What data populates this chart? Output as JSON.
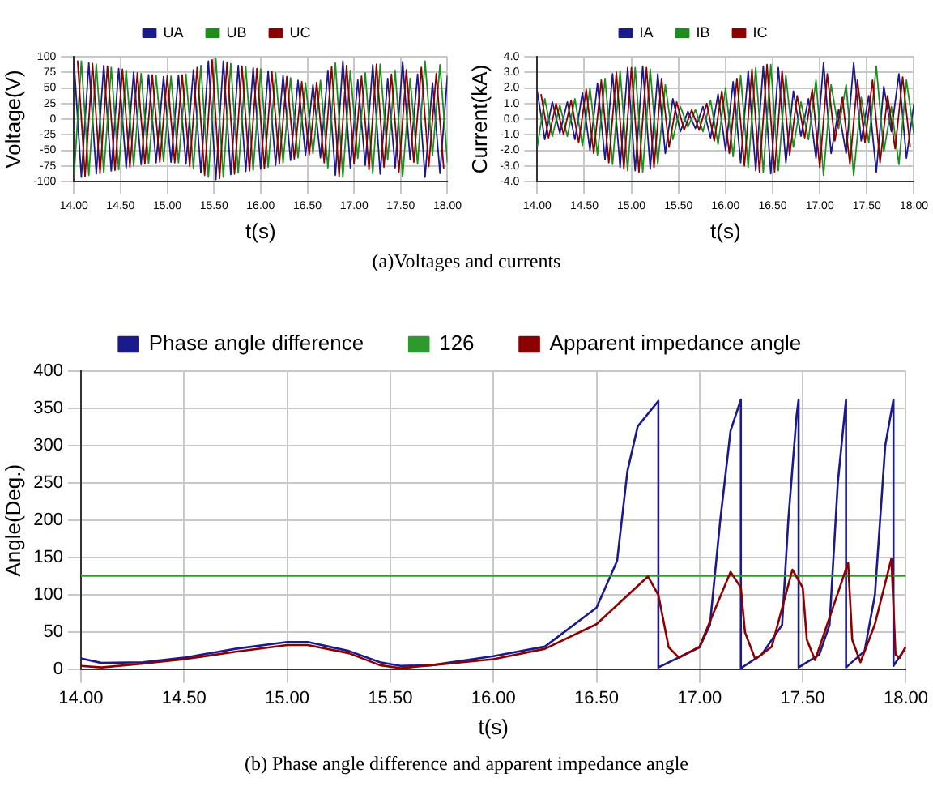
{
  "chart_data": [
    {
      "type": "line",
      "xlabel": "t(s)",
      "ylabel": "Voltage(V)",
      "legend": "top",
      "grid": true,
      "marker": "none",
      "xlim": [
        14,
        18
      ],
      "ylim": [
        -100,
        100
      ],
      "xticks": [
        {
          "value": 14,
          "label": "14.00"
        },
        {
          "value": 14.5,
          "label": "14.50"
        },
        {
          "value": 15,
          "label": "15.00"
        },
        {
          "value": 15.5,
          "label": "15.50"
        },
        {
          "value": 16,
          "label": "16.00"
        },
        {
          "value": 16.5,
          "label": "16.50"
        },
        {
          "value": 17,
          "label": "17.00"
        },
        {
          "value": 17.5,
          "label": "17.50"
        },
        {
          "value": 18,
          "label": "18.00"
        }
      ],
      "yticks": [
        -100,
        -75,
        -50,
        -25,
        0,
        25,
        50,
        75,
        100
      ],
      "x": [
        14,
        14.08,
        14.16,
        14.24,
        14.32,
        14.4,
        14.48,
        14.56,
        14.64,
        14.72,
        14.8,
        14.88,
        14.96,
        15.04,
        15.12,
        15.2,
        15.28,
        15.36,
        15.44,
        15.52,
        15.6,
        15.68,
        15.76,
        15.84,
        15.92,
        16,
        16.08,
        16.16,
        16.24,
        16.32,
        16.4,
        16.48,
        16.56,
        16.64,
        16.72,
        16.8,
        16.88,
        16.96,
        17.04,
        17.12,
        17.2,
        17.28,
        17.36,
        17.44,
        17.52,
        17.6,
        17.68,
        17.76,
        17.84,
        17.92,
        18
      ],
      "series": [
        {
          "name": "UA",
          "color": "#1a1a8c",
          "values": [
            95,
            -93,
            90,
            -88,
            86,
            -83,
            81,
            -78,
            75,
            -73,
            71,
            -70,
            68,
            -69,
            70,
            -72,
            79,
            -86,
            93,
            -97,
            93,
            -89,
            86,
            -84,
            82,
            -80,
            77,
            -74,
            70,
            -66,
            62,
            -58,
            55,
            -62,
            78,
            -90,
            93,
            -78,
            63,
            -74,
            87,
            -88,
            65,
            -78,
            92,
            -65,
            72,
            -93,
            58,
            -87,
            70
          ]
        },
        {
          "name": "UB",
          "color": "#1e8c1e",
          "values": [
            -95,
            93,
            -90,
            88,
            -86,
            83,
            -81,
            78,
            -75,
            73,
            -71,
            70,
            -68,
            69,
            -70,
            72,
            -79,
            86,
            -93,
            97,
            -93,
            89,
            -86,
            84,
            -82,
            80,
            -77,
            74,
            -70,
            66,
            -62,
            58,
            -55,
            62,
            -78,
            90,
            -93,
            78,
            -63,
            74,
            -87,
            88,
            -65,
            78,
            -92,
            65,
            -72,
            93,
            -58,
            87,
            -70
          ]
        },
        {
          "name": "UC",
          "color": "#8b0000",
          "x": [
            14.04,
            14.12,
            14.2,
            14.28,
            14.36,
            14.44,
            14.52,
            14.6,
            14.68,
            14.76,
            14.84,
            14.92,
            15,
            15.08,
            15.16,
            15.24,
            15.32,
            15.4,
            15.48,
            15.56,
            15.64,
            15.72,
            15.8,
            15.88,
            15.96,
            16.04,
            16.12,
            16.2,
            16.28,
            16.36,
            16.44,
            16.52,
            16.6,
            16.68,
            16.76,
            16.84,
            16.92,
            17,
            17.08,
            17.16,
            17.24,
            17.32,
            17.4,
            17.48,
            17.56,
            17.64,
            17.72,
            17.8,
            17.88,
            17.96
          ],
          "values": [
            94,
            -92,
            89,
            -87,
            85,
            -82,
            80,
            -77,
            74,
            -72,
            71,
            -69,
            69,
            -70,
            71,
            -76,
            83,
            -90,
            95,
            -95,
            91,
            -88,
            85,
            -83,
            81,
            -79,
            76,
            -72,
            68,
            -64,
            60,
            -57,
            59,
            -70,
            84,
            -92,
            86,
            -71,
            69,
            -81,
            88,
            -77,
            72,
            -85,
            79,
            -69,
            83,
            -76,
            73,
            -79
          ]
        }
      ],
      "annotations": [
        "(a)Voltages and currents"
      ]
    },
    {
      "type": "line",
      "xlabel": "t(s)",
      "ylabel": "Current(kA)",
      "legend": "top",
      "grid": true,
      "marker": "none",
      "xlim": [
        14,
        18
      ],
      "ylim": [
        -4,
        4
      ],
      "xticks": [
        {
          "value": 14,
          "label": "14.00"
        },
        {
          "value": 14.5,
          "label": "14.50"
        },
        {
          "value": 15,
          "label": "15.00"
        },
        {
          "value": 15.5,
          "label": "15.50"
        },
        {
          "value": 16,
          "label": "16.00"
        },
        {
          "value": 16.5,
          "label": "16.50"
        },
        {
          "value": 17,
          "label": "17.00"
        },
        {
          "value": 17.5,
          "label": "17.50"
        },
        {
          "value": 18,
          "label": "18.00"
        }
      ],
      "yticks": [
        {
          "value": -4,
          "label": "-4.0"
        },
        {
          "value": -3,
          "label": "-3.0"
        },
        {
          "value": -2,
          "label": "-2.0"
        },
        {
          "value": -1,
          "label": "-1.0"
        },
        {
          "value": 0,
          "label": "0.0"
        },
        {
          "value": 1,
          "label": "1.0"
        },
        {
          "value": 2,
          "label": "2.0"
        },
        {
          "value": 3,
          "label": "3.0"
        },
        {
          "value": 4,
          "label": "4.0"
        }
      ],
      "x": [
        14,
        14.08,
        14.16,
        14.24,
        14.32,
        14.4,
        14.48,
        14.56,
        14.64,
        14.72,
        14.8,
        14.88,
        14.96,
        15.04,
        15.12,
        15.2,
        15.28,
        15.36,
        15.44,
        15.52,
        15.6,
        15.68,
        15.76,
        15.84,
        15.92,
        16,
        16.08,
        16.16,
        16.24,
        16.32,
        16.4,
        16.48,
        16.56,
        16.64,
        16.72,
        16.8,
        16.88,
        16.96,
        17.04,
        17.12,
        17.2,
        17.28,
        17.36,
        17.44,
        17.52,
        17.6,
        17.68,
        17.76,
        17.84,
        17.92,
        18
      ],
      "series": [
        {
          "name": "IA",
          "color": "#1a1a8c",
          "values": [
            1.8,
            -1.3,
            1.1,
            -0.9,
            1.1,
            -1.3,
            1.7,
            -2.0,
            2.3,
            -2.6,
            2.9,
            -3.1,
            3.3,
            -3.3,
            3.4,
            -3.2,
            2.9,
            -2.2,
            1.3,
            -0.8,
            0.5,
            -0.6,
            0.8,
            -1.2,
            1.6,
            -2.0,
            2.4,
            -2.8,
            3.1,
            -3.3,
            3.4,
            -3.5,
            3.3,
            -2.8,
            1.8,
            -1.1,
            1.3,
            -2.5,
            3.6,
            -2.2,
            0.6,
            -2.2,
            3.6,
            -1.4,
            1.5,
            -3.4,
            2.1,
            -0.8,
            2.9,
            -2.5,
            1.0
          ]
        },
        {
          "name": "IB",
          "color": "#1e8c1e",
          "values": [
            -1.8,
            1.3,
            -1.1,
            0.9,
            -1.1,
            1.3,
            -1.7,
            2.0,
            -2.3,
            2.6,
            -2.9,
            3.1,
            -3.3,
            3.3,
            -3.4,
            3.2,
            -2.9,
            2.2,
            -1.3,
            0.8,
            -0.5,
            0.6,
            -0.8,
            1.2,
            -1.6,
            2.0,
            -2.4,
            2.8,
            -3.1,
            3.3,
            -3.4,
            3.5,
            -3.3,
            2.8,
            -1.8,
            1.1,
            -1.3,
            2.5,
            -3.6,
            2.2,
            -0.6,
            2.2,
            -3.6,
            1.4,
            -1.5,
            3.4,
            -2.1,
            0.8,
            -2.9,
            2.5,
            -1.0
          ]
        },
        {
          "name": "IC",
          "color": "#8b0000",
          "x": [
            14.04,
            14.12,
            14.2,
            14.28,
            14.36,
            14.44,
            14.52,
            14.6,
            14.68,
            14.76,
            14.84,
            14.92,
            15,
            15.08,
            15.16,
            15.24,
            15.32,
            15.4,
            15.48,
            15.56,
            15.64,
            15.72,
            15.8,
            15.88,
            15.96,
            16.04,
            16.12,
            16.2,
            16.28,
            16.36,
            16.44,
            16.52,
            16.6,
            16.68,
            16.76,
            16.84,
            16.92,
            17,
            17.08,
            17.16,
            17.24,
            17.32,
            17.4,
            17.48,
            17.56,
            17.64,
            17.72,
            17.8,
            17.88,
            17.96
          ],
          "values": [
            1.6,
            -1.2,
            1.0,
            -1.0,
            1.2,
            -1.5,
            1.9,
            -2.2,
            2.5,
            -2.8,
            3.0,
            -3.2,
            3.3,
            -3.4,
            3.3,
            -3.1,
            2.6,
            -1.8,
            1.1,
            -0.7,
            0.6,
            -0.7,
            1.0,
            -1.4,
            1.8,
            -2.2,
            2.6,
            -3.0,
            3.2,
            -3.4,
            3.5,
            -3.4,
            3.1,
            -2.3,
            1.5,
            -1.2,
            1.9,
            -3.1,
            2.9,
            -1.4,
            1.4,
            -2.9,
            2.5,
            -1.5,
            2.5,
            -2.8,
            1.5,
            -1.9,
            2.7,
            -1.8
          ]
        }
      ]
    },
    {
      "type": "line",
      "xlabel": "t(s)",
      "ylabel": "Angle(Deg.)",
      "legend": "top",
      "grid": true,
      "marker": "none",
      "xlim": [
        14,
        18
      ],
      "ylim": [
        0,
        400
      ],
      "xticks": [
        {
          "value": 14,
          "label": "14.00"
        },
        {
          "value": 14.5,
          "label": "14.50"
        },
        {
          "value": 15,
          "label": "15.00"
        },
        {
          "value": 15.5,
          "label": "15.50"
        },
        {
          "value": 16,
          "label": "16.00"
        },
        {
          "value": 16.5,
          "label": "16.50"
        },
        {
          "value": 17,
          "label": "17.00"
        },
        {
          "value": 17.5,
          "label": "17.50"
        },
        {
          "value": 18,
          "label": "18.00"
        }
      ],
      "yticks": [
        0,
        50,
        100,
        150,
        200,
        250,
        300,
        350,
        400
      ],
      "series": [
        {
          "name": "Phase angle difference",
          "color": "#1a1a8c",
          "x": [
            14,
            14.1,
            14.3,
            14.5,
            14.75,
            15,
            15.1,
            15.3,
            15.45,
            15.55,
            15.7,
            16,
            16.25,
            16.5,
            16.6,
            16.65,
            16.7,
            16.8,
            16.8,
            17,
            17.05,
            17.1,
            17.15,
            17.2,
            17.2,
            17.3,
            17.4,
            17.43,
            17.47,
            17.48,
            17.48,
            17.58,
            17.63,
            17.67,
            17.71,
            17.71,
            17.8,
            17.85,
            17.9,
            17.94,
            17.94,
            18
          ],
          "values": [
            15,
            9,
            10,
            16,
            28,
            37,
            37,
            25,
            10,
            5,
            6,
            18,
            31,
            83,
            146,
            266,
            326,
            360,
            3,
            30,
            60,
            200,
            320,
            362,
            2,
            20,
            60,
            200,
            340,
            362,
            3,
            20,
            60,
            250,
            362,
            3,
            25,
            100,
            300,
            362,
            5,
            30
          ]
        },
        {
          "name": "126",
          "color": "#2e9a2e",
          "x": [
            14,
            18
          ],
          "values": [
            126,
            126
          ]
        },
        {
          "name": "Apparent impedance angle",
          "color": "#8b0000",
          "x": [
            14,
            14.1,
            14.3,
            14.5,
            14.75,
            15,
            15.1,
            15.3,
            15.45,
            15.55,
            15.7,
            16,
            16.25,
            16.5,
            16.75,
            16.8,
            16.85,
            16.9,
            17,
            17.1,
            17.15,
            17.2,
            17.22,
            17.27,
            17.35,
            17.45,
            17.5,
            17.52,
            17.56,
            17.65,
            17.72,
            17.74,
            17.78,
            17.85,
            17.93,
            17.95,
            17.97,
            18
          ],
          "values": [
            5,
            3,
            8,
            14,
            24,
            33,
            33,
            22,
            6,
            2,
            6,
            14,
            28,
            61,
            125,
            100,
            30,
            16,
            31,
            98,
            131,
            110,
            50,
            14,
            31,
            134,
            110,
            40,
            13,
            86,
            143,
            40,
            10,
            61,
            149,
            20,
            16,
            31
          ]
        }
      ],
      "annotations": [
        "(b) Phase angle difference and apparent impedance angle"
      ]
    }
  ]
}
